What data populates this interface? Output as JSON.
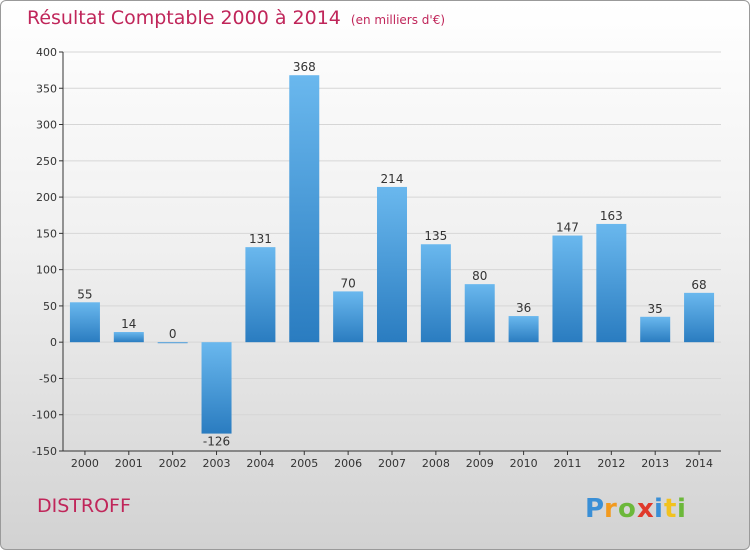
{
  "title": "Résultat Comptable 2000 à 2014",
  "subtitle": "(en milliers d'€)",
  "city": "DISTROFF",
  "logo_text": "Proxiti",
  "colors": {
    "title": "#c0265a",
    "bar_light": "#6ab8ee",
    "bar_dark": "#2a7cc0",
    "axis": "#333333",
    "grid": "#d8d8d8"
  },
  "chart_data": {
    "type": "bar",
    "categories": [
      "2000",
      "2001",
      "2002",
      "2003",
      "2004",
      "2005",
      "2006",
      "2007",
      "2008",
      "2009",
      "2010",
      "2011",
      "2012",
      "2013",
      "2014"
    ],
    "values": [
      55,
      14,
      0,
      -126,
      131,
      368,
      70,
      214,
      135,
      80,
      36,
      147,
      163,
      35,
      68
    ],
    "labels": [
      "55",
      "14",
      "0",
      "-126",
      "131",
      "368",
      "70",
      "214",
      "135",
      "80",
      "36",
      "147",
      "163",
      "35",
      "68"
    ],
    "ylim": [
      -150,
      400
    ],
    "yticks": [
      -150,
      -100,
      -50,
      0,
      50,
      100,
      150,
      200,
      250,
      300,
      350,
      400
    ],
    "grid": true
  }
}
